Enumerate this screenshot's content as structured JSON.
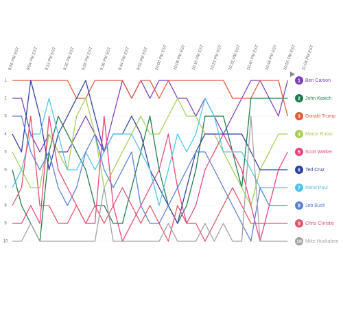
{
  "chart_data": {
    "type": "line",
    "categories": [
      "8:56 PM EST",
      null,
      "9:04 PM EST",
      null,
      "9:12 PM EST",
      null,
      "9:20 PM EST",
      null,
      "9:28 PM EST",
      null,
      "9:36 PM EST",
      null,
      "9:44 PM EST",
      null,
      "9:52 PM EST",
      null,
      "10:00 PM EST",
      null,
      "10:08 PM EST",
      null,
      "10:16 PM EST",
      null,
      "10:24 PM EST",
      null,
      "10:32 PM EST",
      null,
      "10:40 PM EST",
      null,
      "10:48 PM EST",
      null,
      "10:56 PM EST",
      null,
      "11:04 PM EST"
    ],
    "ylim": [
      1,
      10
    ],
    "yticks": [
      1,
      2,
      3,
      4,
      5,
      6,
      7,
      8,
      9,
      10
    ],
    "y_reversed": true,
    "grid": true,
    "series": [
      {
        "name": "Ben Carson",
        "color": "#7b3fb5",
        "values": [
          2,
          2,
          4,
          5,
          4,
          5,
          5,
          4,
          3,
          4,
          5,
          3,
          1,
          2,
          1,
          2,
          1,
          1,
          2,
          2,
          3,
          2,
          3,
          4,
          3,
          2,
          1,
          1,
          2,
          3,
          1,
          null,
          null
        ]
      },
      {
        "name": "John Kasich",
        "color": "#1f7a4a",
        "values": [
          6,
          8,
          9,
          10,
          5,
          3,
          4,
          5,
          6,
          8,
          8,
          9,
          9,
          7,
          5,
          3,
          6,
          8,
          9,
          8,
          6,
          3,
          3,
          3,
          5,
          7,
          2,
          2,
          2,
          2,
          2,
          null,
          null
        ]
      },
      {
        "name": "Donald Trump",
        "color": "#e05a3a",
        "values": [
          1,
          1,
          1,
          1,
          1,
          1,
          1,
          2,
          2,
          1,
          1,
          1,
          1,
          2,
          1,
          1,
          2,
          1,
          1,
          1,
          1,
          1,
          1,
          1,
          2,
          2,
          2,
          1,
          1,
          1,
          3,
          null,
          null
        ]
      },
      {
        "name": "Marco Rubio",
        "color": "#a5cf5a",
        "values": [
          5,
          6,
          7,
          7,
          4,
          5,
          6,
          3,
          2,
          4,
          7,
          6,
          5,
          4,
          3,
          4,
          4,
          3,
          2,
          3,
          3,
          4,
          4,
          5,
          6,
          7,
          8,
          6,
          5,
          4,
          4,
          null,
          null
        ]
      },
      {
        "name": "Scott Walker",
        "color": "#e8457a",
        "values": [
          9,
          9,
          8,
          9,
          3,
          6,
          7,
          8,
          9,
          9,
          3,
          8,
          10,
          9,
          8,
          7,
          6,
          4,
          7,
          9,
          8,
          6,
          5,
          4,
          5,
          6,
          8,
          10,
          8,
          6,
          5,
          null,
          null
        ]
      },
      {
        "name": "Ted Cruz",
        "color": "#2c3e9e",
        "values": [
          4,
          5,
          1,
          3,
          6,
          4,
          3,
          2,
          1,
          3,
          5,
          4,
          4,
          3,
          4,
          6,
          7,
          8,
          9,
          7,
          5,
          4,
          4,
          4,
          4,
          4,
          5,
          6,
          6,
          6,
          6,
          null,
          null
        ]
      },
      {
        "name": "Rand Paul",
        "color": "#4fc3e8",
        "values": [
          7,
          6,
          4,
          4,
          2,
          4,
          6,
          6,
          5,
          6,
          5,
          4,
          4,
          4,
          5,
          6,
          8,
          6,
          4,
          5,
          4,
          2,
          3,
          5,
          5,
          5,
          6,
          7,
          7,
          7,
          7,
          null,
          null
        ]
      },
      {
        "name": "Jeb Bush",
        "color": "#5b7fd6",
        "values": [
          3,
          3,
          5,
          6,
          5,
          7,
          8,
          7,
          5,
          4,
          6,
          7,
          6,
          5,
          8,
          9,
          9,
          8,
          7,
          6,
          5,
          5,
          6,
          7,
          8,
          9,
          10,
          7,
          8,
          8,
          8,
          null,
          null
        ]
      },
      {
        "name": "Chris Christie",
        "color": "#e0536a",
        "values": [
          8,
          7,
          3,
          8,
          8,
          9,
          9,
          8,
          9,
          8,
          9,
          8,
          7,
          8,
          9,
          8,
          9,
          10,
          8,
          9,
          9,
          10,
          9,
          8,
          7,
          8,
          9,
          9,
          9,
          9,
          9,
          null,
          null
        ]
      },
      {
        "name": "Mike Huckabee",
        "color": "#a0a0a0",
        "values": [
          10,
          10,
          9,
          10,
          10,
          10,
          10,
          10,
          10,
          10,
          7,
          10,
          10,
          10,
          10,
          10,
          10,
          9,
          10,
          10,
          10,
          9,
          10,
          9,
          10,
          10,
          3,
          10,
          10,
          10,
          10,
          null,
          null
        ]
      }
    ]
  }
}
